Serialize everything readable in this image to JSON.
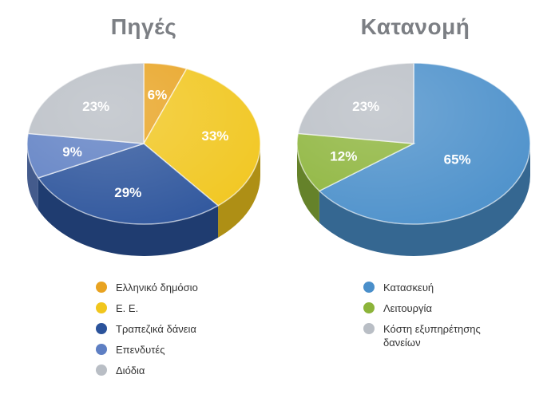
{
  "chart_data": [
    {
      "type": "pie",
      "title": "Πηγές",
      "slices": [
        {
          "label": "Ελληνικό δημόσιο",
          "value": 6,
          "text": "6%",
          "color": "#e8a321"
        },
        {
          "label": "Ε. Ε.",
          "value": 33,
          "text": "33%",
          "color": "#f1c61d"
        },
        {
          "label": "Τραπεζικά δάνεια",
          "value": 29,
          "text": "29%",
          "color": "#2b539b"
        },
        {
          "label": "Επενδυτές",
          "value": 9,
          "text": "9%",
          "color": "#5e7fc3"
        },
        {
          "label": "Διόδια",
          "value": 23,
          "text": "23%",
          "color": "#b9bec5"
        }
      ]
    },
    {
      "type": "pie",
      "title": "Κατανομή",
      "slices": [
        {
          "label": "Κατασκευή",
          "value": 65,
          "text": "65%",
          "color": "#4a8fca"
        },
        {
          "label": "Λειτουργία",
          "value": 12,
          "text": "12%",
          "color": "#8cb43a"
        },
        {
          "label": "Κόστη εξυπηρέτησης δανείων",
          "value": 23,
          "text": "23%",
          "color": "#b9bec5"
        }
      ]
    }
  ]
}
